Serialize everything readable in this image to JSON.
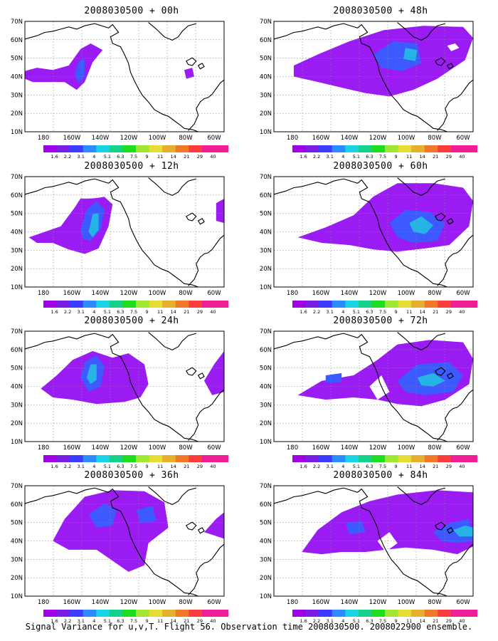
{
  "caption": "Signal Variance for u,v,T. Flight 56. Observation time 2008030500. 2008022900 ensemble.",
  "panels": [
    {
      "title": "2008030500 + 00h"
    },
    {
      "title": "2008030500 + 48h"
    },
    {
      "title": "2008030500 + 12h"
    },
    {
      "title": "2008030500 + 60h"
    },
    {
      "title": "2008030500 + 24h"
    },
    {
      "title": "2008030500 + 72h"
    },
    {
      "title": "2008030500 + 36h"
    },
    {
      "title": "2008030500 + 84h"
    }
  ],
  "map": {
    "lat_labels": [
      "10N",
      "20N",
      "30N",
      "40N",
      "50N",
      "60N",
      "70N"
    ],
    "lon_labels": [
      "180",
      "160W",
      "140W",
      "120W",
      "100W",
      "80W",
      "60W"
    ]
  },
  "colorbar": {
    "labels": [
      "1.6",
      "2.2",
      "3.1",
      "4",
      "5.1",
      "6.3",
      "7.5",
      "9",
      "11",
      "14",
      "21",
      "29",
      "40"
    ],
    "colors": [
      "#a000e6",
      "#7a1ee6",
      "#3c3cff",
      "#2a8cff",
      "#18d2e6",
      "#14d28c",
      "#1edc1e",
      "#a0e632",
      "#e6dc32",
      "#e6af2d",
      "#f07828",
      "#fa3c3c",
      "#f01e96"
    ]
  },
  "shading": {
    "low": "#9b1cf2",
    "mid": "#3c5aff",
    "high": "#26b4e6"
  }
}
